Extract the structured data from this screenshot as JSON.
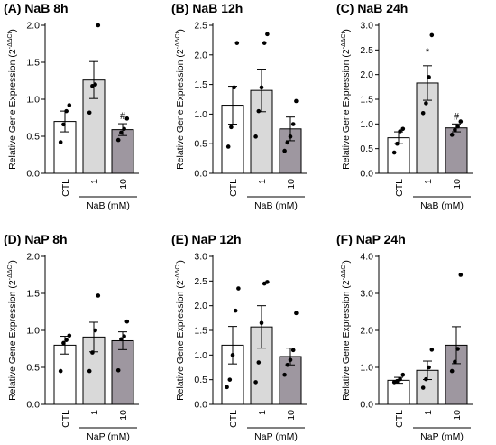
{
  "chart_data": [
    {
      "type": "bar",
      "panel": "(A)",
      "title": "NaB 8h",
      "ylabel": "Relative Gene Expression (2",
      "ylabel_sup": "-ΔΔCt",
      "ylabel_end": ")",
      "categories": [
        "CTL",
        "1",
        "10"
      ],
      "group_label": "NaB (mM)",
      "ylim": [
        0,
        2.0
      ],
      "yticks": [
        "0.0",
        "0.5",
        "1.0",
        "1.5",
        "2.0"
      ],
      "values": [
        0.7,
        1.26,
        0.59
      ],
      "errors": [
        0.14,
        0.25,
        0.08
      ],
      "points": [
        [
          0.42,
          0.66,
          0.84,
          0.92
        ],
        [
          0.82,
          1.18,
          1.2,
          2.0
        ],
        [
          0.45,
          0.55,
          0.6,
          0.74
        ]
      ],
      "annotations": [
        "",
        "",
        "#"
      ],
      "colors": [
        "#ffffff",
        "#d9d9d9",
        "#9e97a0"
      ]
    },
    {
      "type": "bar",
      "panel": "(B)",
      "title": "NaB 12h",
      "ylabel": "Relative Gene Expression (2",
      "ylabel_sup": "-ΔΔCt",
      "ylabel_end": ")",
      "categories": [
        "CTL",
        "1",
        "10"
      ],
      "group_label": "NaB (mM)",
      "ylim": [
        0,
        2.5
      ],
      "yticks": [
        "0.0",
        "0.5",
        "1.0",
        "1.5",
        "2.0",
        "2.5"
      ],
      "values": [
        1.15,
        1.4,
        0.75
      ],
      "errors": [
        0.32,
        0.36,
        0.2
      ],
      "points": [
        [
          0.45,
          0.78,
          1.45,
          2.2
        ],
        [
          0.62,
          1.05,
          1.45,
          2.2,
          2.35
        ],
        [
          0.38,
          0.52,
          0.62,
          0.83,
          1.22
        ]
      ],
      "annotations": [
        "",
        "",
        ""
      ],
      "colors": [
        "#ffffff",
        "#d9d9d9",
        "#9e97a0"
      ]
    },
    {
      "type": "bar",
      "panel": "(C)",
      "title": "NaB 24h",
      "ylabel": "Relative Gene Expression (2",
      "ylabel_sup": "-ΔΔCt",
      "ylabel_end": ")",
      "categories": [
        "CTL",
        "1",
        "10"
      ],
      "group_label": "NaB (mM)",
      "ylim": [
        0,
        3.0
      ],
      "yticks": [
        "0.0",
        "0.5",
        "1.0",
        "1.5",
        "2.0",
        "2.5",
        "3.0"
      ],
      "values": [
        0.72,
        1.83,
        0.92
      ],
      "errors": [
        0.12,
        0.35,
        0.08
      ],
      "points": [
        [
          0.42,
          0.6,
          0.85,
          0.9
        ],
        [
          1.22,
          1.42,
          1.95,
          2.8
        ],
        [
          0.78,
          0.88,
          0.95,
          1.05
        ]
      ],
      "annotations": [
        "",
        "*",
        "#"
      ],
      "colors": [
        "#ffffff",
        "#d9d9d9",
        "#9e97a0"
      ]
    },
    {
      "type": "bar",
      "panel": "(D)",
      "title": "NaP 8h",
      "ylabel": "Relative Gene Expression (2",
      "ylabel_sup": "-ΔΔCt",
      "ylabel_end": ")",
      "categories": [
        "CTL",
        "1",
        "10"
      ],
      "group_label": "NaP (mM)",
      "ylim": [
        0,
        2.0
      ],
      "yticks": [
        "0.0",
        "0.5",
        "1.0",
        "1.5",
        "2.0"
      ],
      "values": [
        0.8,
        0.91,
        0.86
      ],
      "errors": [
        0.12,
        0.2,
        0.12
      ],
      "points": [
        [
          0.45,
          0.83,
          0.87,
          0.93
        ],
        [
          0.45,
          0.7,
          1.0,
          1.47
        ],
        [
          0.46,
          0.88,
          0.92,
          1.12
        ]
      ],
      "annotations": [
        "",
        "",
        ""
      ],
      "colors": [
        "#ffffff",
        "#d9d9d9",
        "#9e97a0"
      ]
    },
    {
      "type": "bar",
      "panel": "(E)",
      "title": "NaP 12h",
      "ylabel": "Relative Gene Expression (2",
      "ylabel_sup": "-ΔΔCt",
      "ylabel_end": ")",
      "categories": [
        "CTL",
        "1",
        "10"
      ],
      "group_label": "NaP (mM)",
      "ylim": [
        0,
        3.0
      ],
      "yticks": [
        "0.0",
        "0.5",
        "1.0",
        "1.5",
        "2.0",
        "2.5",
        "3.0"
      ],
      "values": [
        1.2,
        1.57,
        0.97
      ],
      "errors": [
        0.38,
        0.43,
        0.17
      ],
      "points": [
        [
          0.35,
          0.5,
          1.0,
          1.9,
          2.35
        ],
        [
          0.45,
          0.85,
          1.65,
          2.45,
          2.48
        ],
        [
          0.6,
          0.8,
          0.9,
          1.1,
          1.85
        ]
      ],
      "annotations": [
        "",
        "",
        ""
      ],
      "colors": [
        "#ffffff",
        "#d9d9d9",
        "#9e97a0"
      ]
    },
    {
      "type": "bar",
      "panel": "(F)",
      "title": "NaP 24h",
      "ylabel": "Relative Gene Expression (2",
      "ylabel_sup": "-ΔΔCt",
      "ylabel_end": ")",
      "categories": [
        "CTL",
        "1",
        "10"
      ],
      "group_label": "NaP (mM)",
      "ylim": [
        0,
        4.0
      ],
      "yticks": [
        "0.0",
        "1.0",
        "2.0",
        "3.0",
        "4.0"
      ],
      "values": [
        0.65,
        0.92,
        1.6
      ],
      "errors": [
        0.08,
        0.25,
        0.5
      ],
      "points": [
        [
          0.6,
          0.63,
          0.68,
          0.8
        ],
        [
          0.45,
          0.68,
          1.0,
          1.48
        ],
        [
          0.9,
          1.15,
          1.5,
          3.5
        ]
      ],
      "annotations": [
        "",
        "",
        ""
      ],
      "colors": [
        "#ffffff",
        "#d9d9d9",
        "#9e97a0"
      ]
    }
  ]
}
